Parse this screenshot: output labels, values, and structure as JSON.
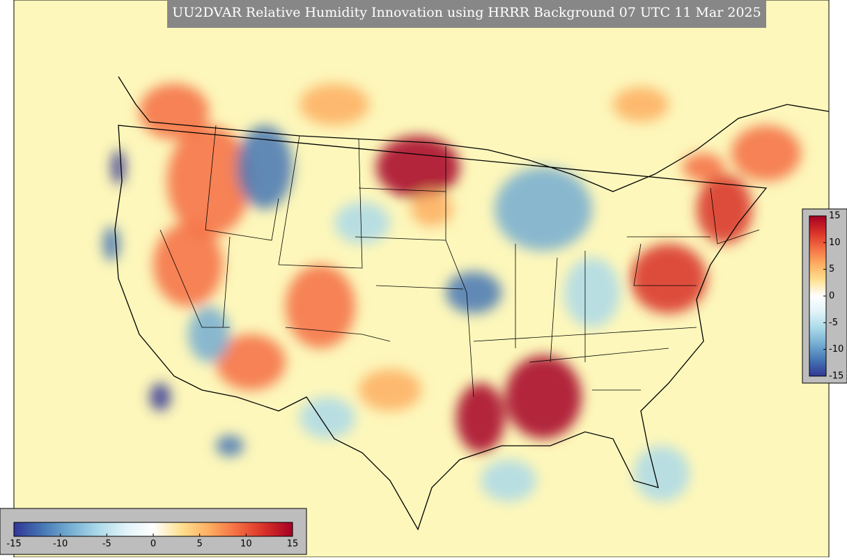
{
  "title": "UU2DVAR Relative Humidity Innovation using HRRR Background 07 UTC 11 Mar 2025",
  "colormap": [
    "#313695",
    "#4575b4",
    "#74add1",
    "#abd9e9",
    "#e0f3f8",
    "#ffffff",
    "#fee090",
    "#fdae61",
    "#f46d43",
    "#d73027",
    "#a50026"
  ],
  "colorbars": [
    {
      "orientation": "horizontal",
      "lim": [
        -15,
        15
      ],
      "ticks": [
        -15,
        -10,
        -5,
        0,
        5,
        10,
        15
      ]
    },
    {
      "orientation": "vertical",
      "lim": [
        -15,
        15
      ],
      "ticks": [
        -15,
        -10,
        -5,
        0,
        5,
        10,
        15
      ]
    }
  ]
}
